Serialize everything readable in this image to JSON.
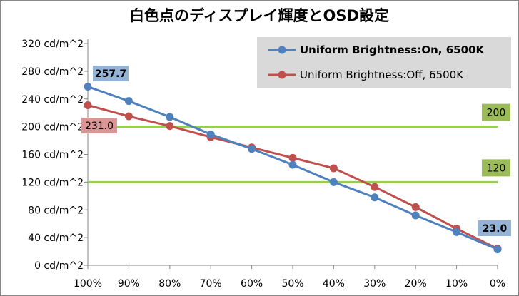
{
  "chart_data": {
    "type": "line",
    "title": "白色点のディスプレイ輝度とOSD設定",
    "categories": [
      "100%",
      "90%",
      "80%",
      "70%",
      "60%",
      "50%",
      "40%",
      "30%",
      "20%",
      "10%",
      "0%"
    ],
    "y_ticks": [
      "0 cd/m^2",
      "40 cd/m^2",
      "80 cd/m^2",
      "120 cd/m^2",
      "160 cd/m^2",
      "200 cd/m^2",
      "240 cd/m^2",
      "280 cd/m^2",
      "320 cd/m^2"
    ],
    "ylim": [
      0,
      320
    ],
    "grid": false,
    "legend_position": "top-right",
    "series": [
      {
        "name": "Uniform Brightness:On, 6500K",
        "color": "#4F81BD",
        "values": [
          257.7,
          237,
          214,
          189,
          168,
          145,
          120,
          98,
          72,
          48,
          23.0
        ],
        "labels": [
          {
            "text": "257.7",
            "index": 0
          },
          {
            "text": "23.0",
            "index": 10
          }
        ]
      },
      {
        "name": "Uniform Brightness:Off, 6500K",
        "color": "#C0504D",
        "values": [
          231.0,
          215,
          201,
          185,
          170,
          155,
          140,
          113,
          84,
          53,
          24
        ],
        "labels": [
          {
            "text": "231.0",
            "index": 0
          }
        ]
      }
    ],
    "reference_lines": [
      {
        "value": 200,
        "label": "200",
        "color": "#92D050"
      },
      {
        "value": 120,
        "label": "120",
        "color": "#92D050"
      }
    ],
    "colors": {
      "legend_background": "#D9D9D9",
      "label_blue_background": "#95B3D7",
      "label_red_background": "#DA9694",
      "label_green_background": "#9BBB59"
    }
  }
}
